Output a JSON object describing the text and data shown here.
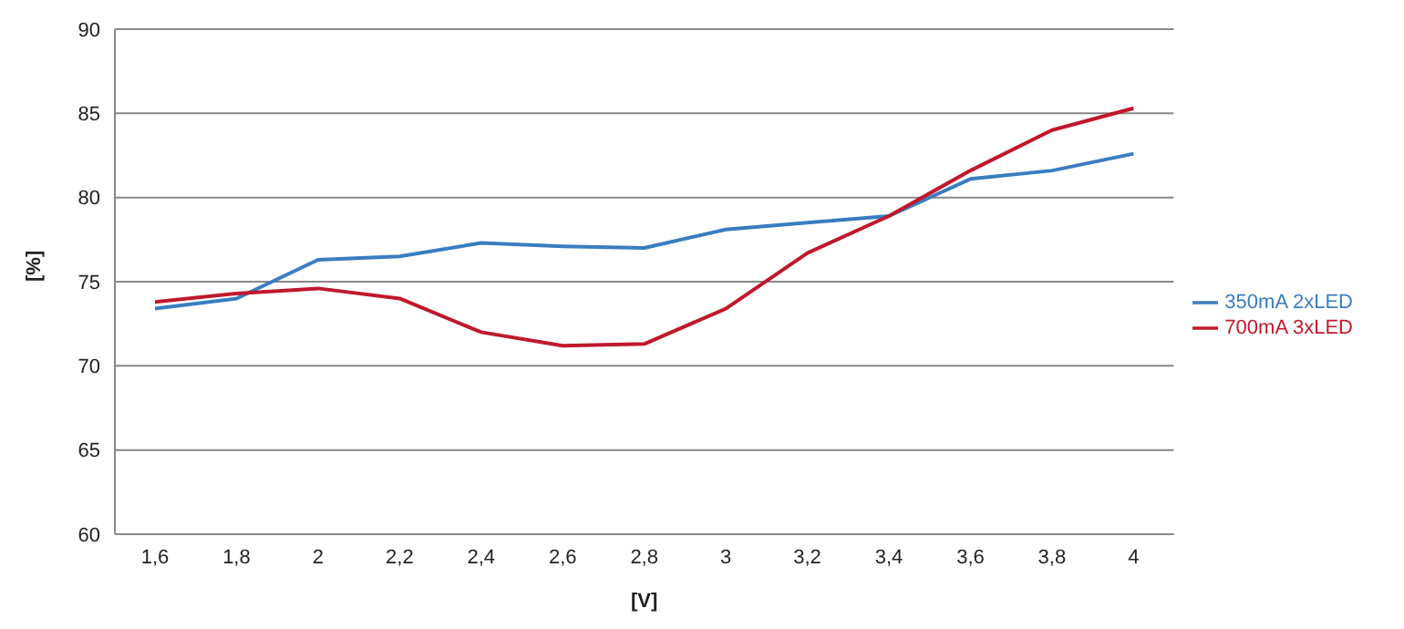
{
  "chart_data": {
    "type": "line",
    "xlabel": "[V]",
    "ylabel": "[%]",
    "categories": [
      "1,6",
      "1,8",
      "2",
      "2,2",
      "2,4",
      "2,6",
      "2,8",
      "3",
      "3,2",
      "3,4",
      "3,6",
      "3,8",
      "4"
    ],
    "series": [
      {
        "name": "350mA  2xLED",
        "color": "#3a7dc0",
        "values": [
          73.4,
          74.0,
          76.3,
          76.5,
          77.3,
          77.1,
          77.0,
          78.1,
          78.5,
          78.9,
          81.1,
          81.6,
          82.6
        ]
      },
      {
        "name": "700mA  3xLED",
        "color": "#c0182c",
        "values": [
          73.8,
          74.3,
          74.6,
          74.0,
          72.0,
          71.2,
          71.3,
          73.4,
          76.7,
          78.9,
          81.6,
          84.0,
          85.3
        ]
      }
    ],
    "ylim": [
      60,
      90
    ],
    "yticks": [
      60,
      65,
      70,
      75,
      80,
      85,
      90
    ],
    "grid": "y",
    "legend": "right",
    "marker": "none",
    "line_style": "solid"
  }
}
